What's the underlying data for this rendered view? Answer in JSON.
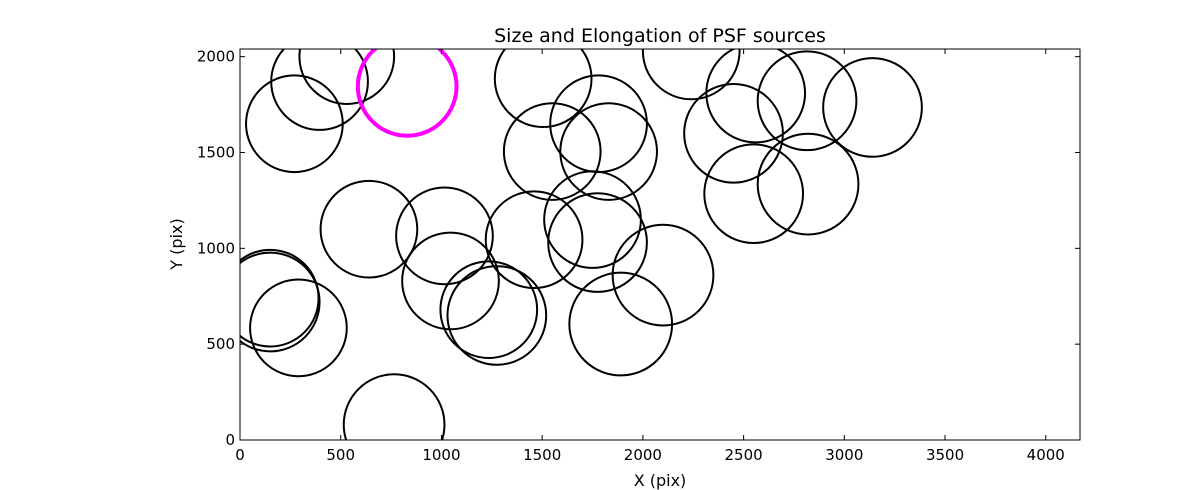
{
  "chart_data": {
    "type": "scatter",
    "title": "Size and Elongation of PSF sources",
    "xlabel": "X (pix)",
    "ylabel": "Y (pix)",
    "xlim": [
      0,
      4170
    ],
    "ylim": [
      0,
      2040
    ],
    "xticks": [
      0,
      500,
      1000,
      1500,
      2000,
      2500,
      3000,
      3500,
      4000
    ],
    "yticks": [
      0,
      500,
      1000,
      1500,
      2000
    ],
    "grid": false,
    "marker": "circle",
    "radius_units": "pix (data x-units)",
    "colors": {
      "default": "#000000",
      "highlight": "#ff00ff"
    },
    "sources": [
      {
        "x": 395,
        "y": 1870,
        "r": 240
      },
      {
        "x": 530,
        "y": 2000,
        "r": 235
      },
      {
        "x": 270,
        "y": 1650,
        "r": 240
      },
      {
        "x": 830,
        "y": 1845,
        "r": 245,
        "highlight": true
      },
      {
        "x": 1505,
        "y": 1885,
        "r": 240
      },
      {
        "x": 2240,
        "y": 2030,
        "r": 240
      },
      {
        "x": 1780,
        "y": 1650,
        "r": 240
      },
      {
        "x": 1550,
        "y": 1505,
        "r": 240
      },
      {
        "x": 1830,
        "y": 1505,
        "r": 240
      },
      {
        "x": 2560,
        "y": 1810,
        "r": 245
      },
      {
        "x": 2815,
        "y": 1770,
        "r": 245
      },
      {
        "x": 3140,
        "y": 1735,
        "r": 245
      },
      {
        "x": 2450,
        "y": 1600,
        "r": 245
      },
      {
        "x": 2550,
        "y": 1285,
        "r": 245
      },
      {
        "x": 2820,
        "y": 1335,
        "r": 250
      },
      {
        "x": 1750,
        "y": 1150,
        "r": 240
      },
      {
        "x": 1775,
        "y": 1030,
        "r": 245
      },
      {
        "x": 2100,
        "y": 860,
        "r": 250
      },
      {
        "x": 1890,
        "y": 605,
        "r": 255
      },
      {
        "x": 640,
        "y": 1100,
        "r": 240
      },
      {
        "x": 1015,
        "y": 1065,
        "r": 240
      },
      {
        "x": 1460,
        "y": 1045,
        "r": 240
      },
      {
        "x": 1045,
        "y": 830,
        "r": 240
      },
      {
        "x": 1235,
        "y": 680,
        "r": 240
      },
      {
        "x": 1275,
        "y": 650,
        "r": 245
      },
      {
        "x": 150,
        "y": 740,
        "r": 240
      },
      {
        "x": 150,
        "y": 720,
        "r": 245
      },
      {
        "x": 290,
        "y": 585,
        "r": 240
      },
      {
        "x": 765,
        "y": 80,
        "r": 250
      }
    ]
  }
}
